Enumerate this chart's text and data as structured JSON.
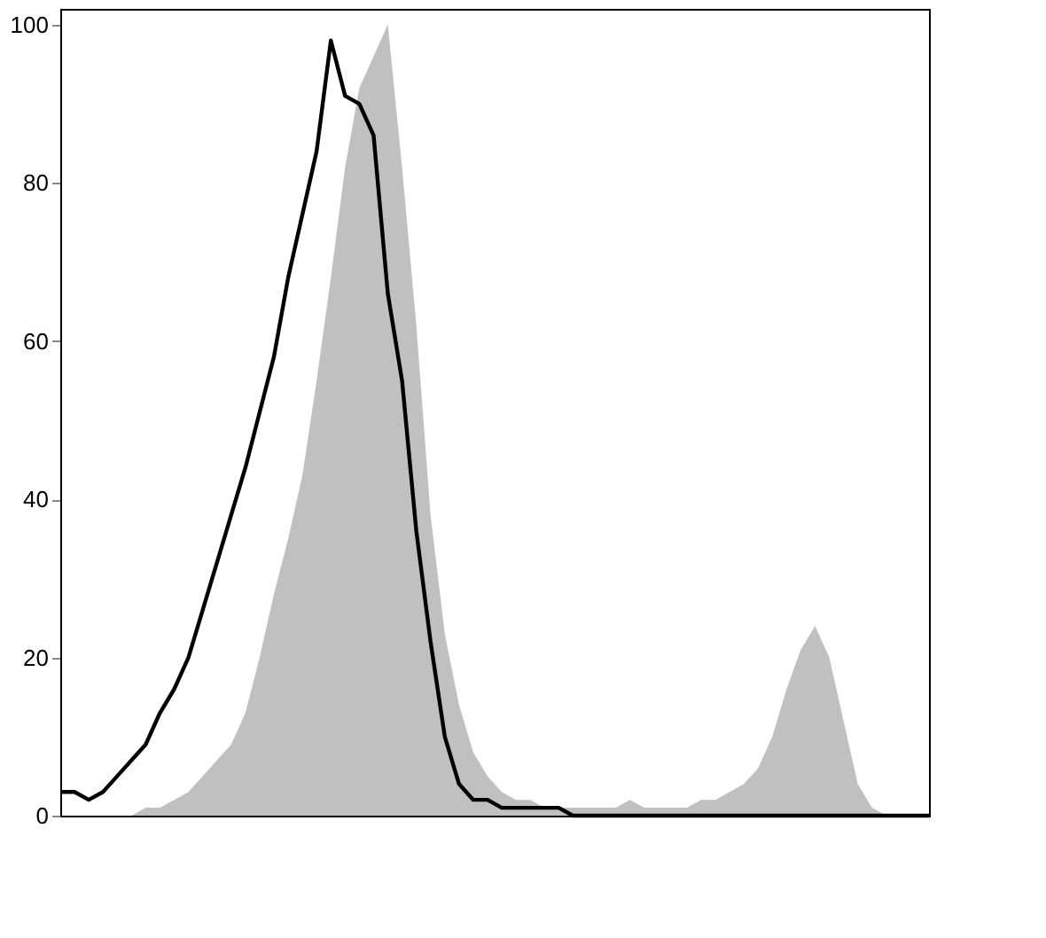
{
  "chart_data": {
    "type": "area",
    "categories": [
      null,
      null,
      null,
      null,
      null,
      null,
      null,
      null,
      null,
      null,
      null,
      null,
      null,
      null,
      null,
      null,
      null,
      null,
      null,
      null,
      null,
      null,
      null,
      null,
      null,
      null,
      null,
      null,
      null,
      null,
      null,
      null,
      null,
      null,
      null,
      null,
      null,
      null,
      null,
      null,
      null,
      null,
      null,
      null,
      null,
      null,
      null,
      null,
      null,
      null,
      null,
      null,
      null,
      null,
      null,
      null,
      null,
      null,
      null,
      null,
      null,
      null
    ],
    "series": [
      {
        "color": "#c0c0c0",
        "values": [
          0,
          0,
          0,
          0,
          0,
          0,
          1,
          1,
          2,
          3,
          5,
          7,
          9,
          13,
          20,
          28,
          35,
          43,
          55,
          68,
          82,
          92,
          96,
          100,
          82,
          62,
          38,
          23,
          14,
          8,
          5,
          3,
          2,
          2,
          1,
          1,
          1,
          1,
          1,
          1,
          2,
          1,
          1,
          1,
          1,
          2,
          2,
          3,
          4,
          6,
          10,
          16,
          21,
          24,
          20,
          12,
          4,
          1,
          0,
          0,
          0,
          0
        ]
      },
      {
        "type": "line",
        "color": "#000000",
        "values": [
          3,
          3,
          2,
          3,
          5,
          7,
          9,
          13,
          16,
          20,
          26,
          32,
          38,
          44,
          51,
          58,
          68,
          76,
          84,
          98,
          91,
          90,
          86,
          66,
          55,
          36,
          22,
          10,
          4,
          2,
          2,
          1,
          1,
          1,
          1,
          1,
          0,
          0,
          0,
          0,
          0,
          0,
          0,
          0,
          0,
          0,
          0,
          0,
          0,
          0,
          0,
          0,
          0,
          0,
          0,
          0,
          0,
          0,
          0,
          0,
          0,
          0
        ]
      }
    ],
    "ylim": [
      0,
      102
    ],
    "yticks": [
      0,
      20,
      40,
      60,
      80,
      100
    ],
    "grid": false,
    "tick_labels": "y",
    "line_style": "solid",
    "marker": "none"
  }
}
